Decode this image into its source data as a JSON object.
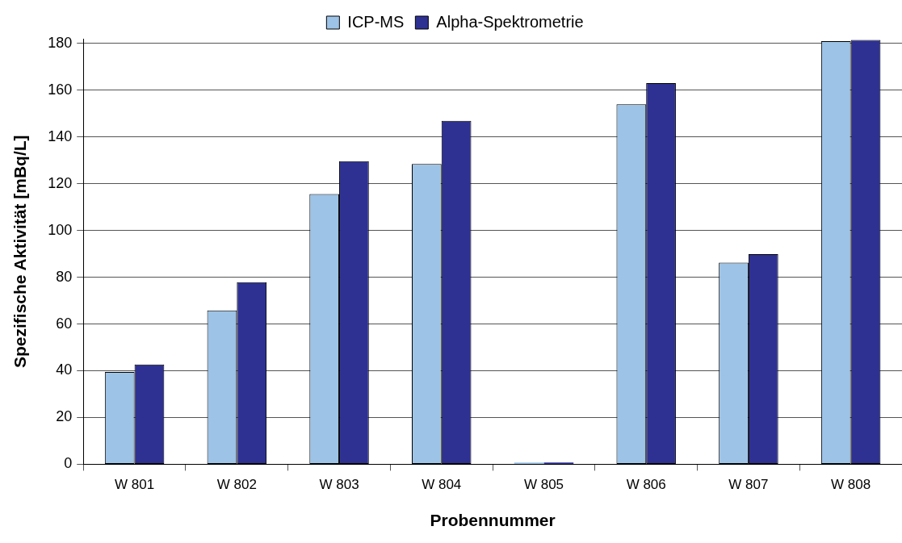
{
  "chart_data": {
    "type": "bar",
    "xlabel": "Probennummer",
    "ylabel": "Spezifische Aktivität [mBq/L]",
    "categories": [
      "W 801",
      "W 802",
      "W 803",
      "W 804",
      "W 805",
      "W 806",
      "W 807",
      "W 808"
    ],
    "series": [
      {
        "name": "ICP-MS",
        "color": "#9dc3e6",
        "values": [
          39.5,
          65.8,
          115.6,
          128.4,
          0.7,
          154,
          86.2,
          181
        ]
      },
      {
        "name": "Alpha-Spektrometrie",
        "color": "#2e3192",
        "values": [
          42.7,
          77.9,
          129.6,
          146.9,
          0.7,
          163,
          89.9,
          181.5
        ]
      }
    ],
    "ylim": [
      0,
      182
    ],
    "yticks": [
      0,
      20,
      40,
      60,
      80,
      100,
      120,
      140,
      160,
      180
    ],
    "grid": "y",
    "legend": "top"
  }
}
